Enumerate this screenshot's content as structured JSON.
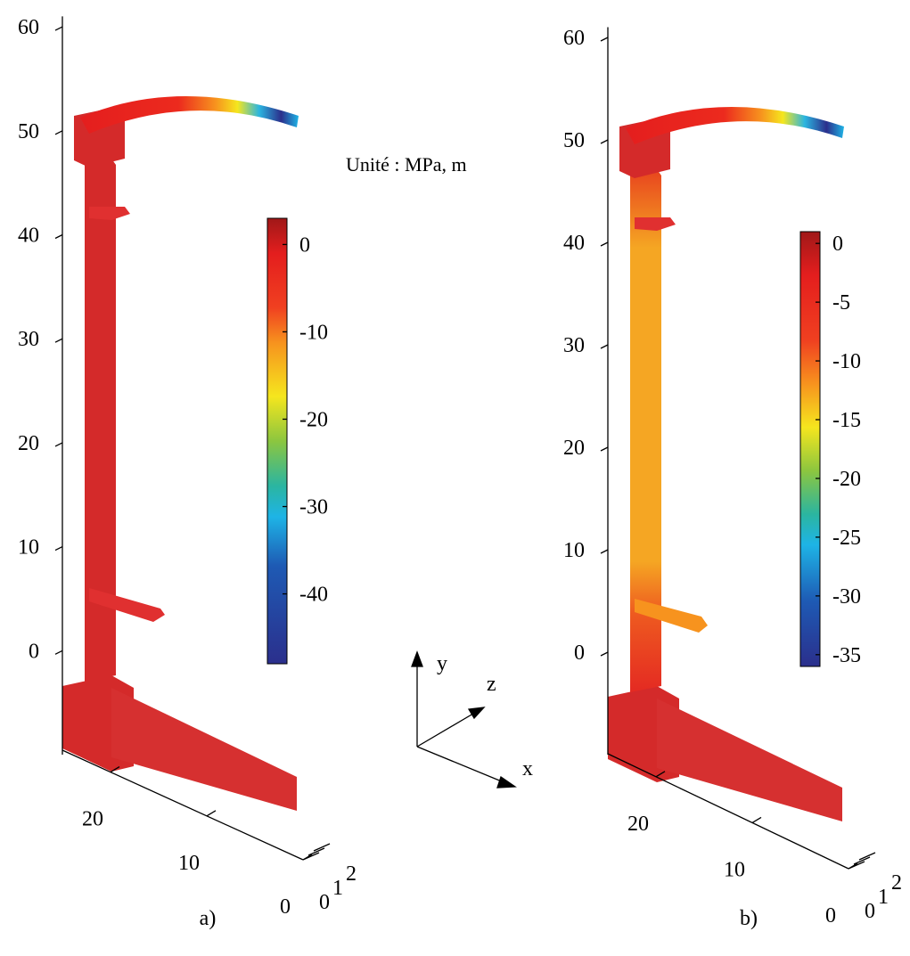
{
  "chart_data": [
    {
      "type": "surface3d",
      "label": "a)",
      "ylim": [
        -10,
        61
      ],
      "yticks": [
        0,
        10,
        20,
        30,
        40,
        50,
        60
      ],
      "zlim": [
        0,
        25
      ],
      "zticks": [
        0,
        10,
        20
      ],
      "xlim": [
        0,
        2
      ],
      "xticks": [
        0,
        1,
        2
      ],
      "colorbar": {
        "lim": [
          -48,
          3
        ],
        "ticks": [
          0,
          -10,
          -20,
          -30,
          -40
        ]
      }
    },
    {
      "type": "surface3d",
      "label": "b)",
      "ylim": [
        -10,
        61
      ],
      "yticks": [
        0,
        10,
        20,
        30,
        40,
        50,
        60
      ],
      "zlim": [
        0,
        25
      ],
      "zticks": [
        0,
        10,
        20
      ],
      "xlim": [
        0,
        2
      ],
      "xticks": [
        0,
        1,
        2
      ],
      "colorbar": {
        "lim": [
          -36,
          1
        ],
        "ticks": [
          0,
          -5,
          -10,
          -15,
          -20,
          -25,
          -30,
          -35
        ]
      }
    }
  ],
  "annotation": "Unité : MPa, m",
  "triad": {
    "x": "x",
    "y": "y",
    "z": "z"
  }
}
